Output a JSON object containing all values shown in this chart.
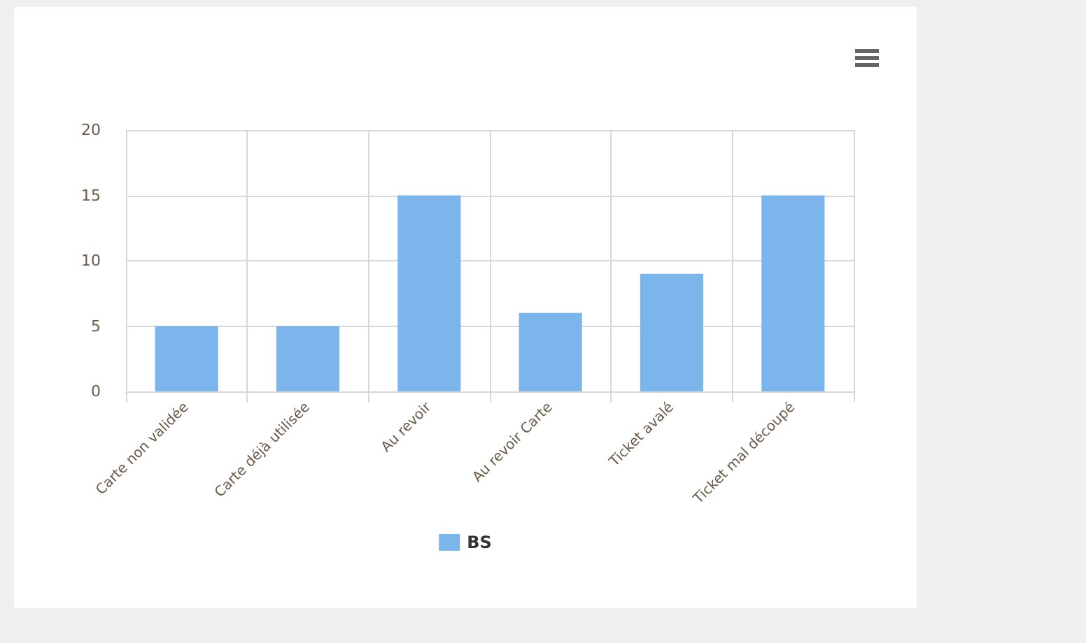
{
  "chart_data": {
    "type": "bar",
    "categories": [
      "Carte non validée",
      "Carte déjà utilisée",
      "Au revoir",
      "Au revoir Carte",
      "Ticket avalé",
      "Ticket mal découpé"
    ],
    "series": [
      {
        "name": "BS",
        "color": "#7cb5ec",
        "values": [
          5,
          5,
          15,
          6,
          9,
          15
        ]
      }
    ],
    "ylim": [
      0,
      20
    ],
    "yticks": [
      0,
      5,
      10,
      15,
      20
    ],
    "grid": true,
    "legend": "bottom"
  }
}
